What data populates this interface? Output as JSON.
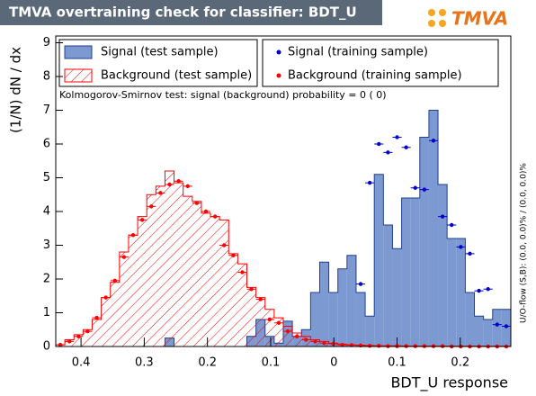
{
  "chart_data": {
    "type": "histogram",
    "title": "TMVA overtraining check for classifier: BDT_U",
    "logo": "TMVA",
    "xlabel": "BDT_U response",
    "ylabel": "(1/N) dN / dx",
    "annotation": "Kolmogorov-Smirnov test: signal (background) probability =     0 (    0)",
    "side_note": "U/O-flow (S,B): (0.0, 0.0)% / (0.0, 0.0)%",
    "xlim": [
      -0.44,
      0.28
    ],
    "ylim": [
      0,
      9.2
    ],
    "xticks": [
      {
        "value": -0.4,
        "label": "0.4"
      },
      {
        "value": -0.3,
        "label": "0.3"
      },
      {
        "value": -0.2,
        "label": "0.2"
      },
      {
        "value": -0.1,
        "label": "0.1"
      },
      0,
      0.1,
      0.2
    ],
    "yticks": [
      0,
      1,
      2,
      3,
      4,
      5,
      6,
      7,
      8,
      9
    ],
    "bins": [
      -0.44,
      -0.4256,
      -0.4112,
      -0.3968,
      -0.3824,
      -0.368,
      -0.3536,
      -0.3392,
      -0.3248,
      -0.3104,
      -0.296,
      -0.2816,
      -0.2672,
      -0.2528,
      -0.2384,
      -0.224,
      -0.2096,
      -0.1952,
      -0.1808,
      -0.1664,
      -0.152,
      -0.1376,
      -0.1232,
      -0.1088,
      -0.0944,
      -0.08,
      -0.0656,
      -0.0512,
      -0.0368,
      -0.0224,
      -0.008,
      0.0064,
      0.0208,
      0.0352,
      0.0496,
      0.064,
      0.0784,
      0.0928,
      0.1072,
      0.1216,
      0.136,
      0.1504,
      0.1648,
      0.1792,
      0.1936,
      0.208,
      0.2224,
      0.2368,
      0.2512,
      0.2656,
      0.28
    ],
    "series": [
      {
        "name": "Signal (test sample)",
        "color": "#7d99d1",
        "style": "filled",
        "values": [
          0,
          0,
          0,
          0,
          0,
          0,
          0,
          0,
          0,
          0,
          0,
          0,
          0.25,
          0,
          0,
          0,
          0,
          0,
          0,
          0,
          0,
          0.3,
          0.8,
          0.3,
          0.1,
          0.75,
          0.3,
          0.5,
          1.6,
          2.5,
          1.6,
          2.3,
          2.7,
          1.6,
          0.9,
          5.1,
          3.6,
          2.9,
          4.4,
          4.4,
          6.2,
          7.0,
          4.8,
          3.2,
          3.2,
          1.6,
          0.9,
          0.8,
          1.1,
          1.1
        ]
      },
      {
        "name": "Background (test sample)",
        "color": "#ff0000",
        "style": "hatched",
        "values": [
          0.05,
          0.2,
          0.35,
          0.5,
          0.8,
          1.45,
          1.9,
          2.8,
          3.3,
          3.85,
          4.5,
          4.75,
          5.2,
          4.85,
          4.45,
          4.3,
          3.95,
          3.85,
          3.75,
          2.75,
          2.45,
          1.75,
          1.45,
          1.1,
          0.85,
          0.6,
          0.4,
          0.3,
          0.2,
          0.15,
          0.1,
          0.07,
          0.05,
          0.04,
          0.03,
          0.02,
          0.02,
          0.02,
          0.01,
          0.01,
          0.01,
          0.01,
          0.01,
          0.01,
          0.01,
          0.01,
          0.01,
          0.01,
          0.01,
          0.01
        ]
      },
      {
        "name": "Signal (training sample)",
        "color": "#0000cc",
        "style": "points",
        "values": [
          null,
          null,
          null,
          null,
          null,
          null,
          null,
          null,
          null,
          null,
          null,
          null,
          null,
          null,
          null,
          null,
          null,
          null,
          null,
          null,
          null,
          null,
          null,
          null,
          null,
          null,
          null,
          null,
          null,
          null,
          null,
          null,
          null,
          1.85,
          4.85,
          6.0,
          5.75,
          6.2,
          5.9,
          4.7,
          4.65,
          6.1,
          3.85,
          3.6,
          2.95,
          2.75,
          1.65,
          1.7,
          0.65,
          0.6
        ]
      },
      {
        "name": "Background (training sample)",
        "color": "#ff0000",
        "style": "points",
        "values": [
          0.05,
          0.15,
          0.3,
          0.45,
          0.85,
          1.45,
          1.95,
          2.65,
          3.3,
          3.75,
          4.15,
          4.55,
          4.8,
          4.9,
          4.75,
          4.25,
          4.0,
          3.85,
          3.0,
          2.7,
          2.2,
          1.7,
          1.4,
          0.8,
          0.7,
          0.45,
          0.3,
          0.2,
          0.15,
          0.1,
          0.08,
          0.05,
          0.04,
          0.03,
          0.02,
          0.02,
          0.01,
          0.01,
          0.01,
          0.01,
          0.01,
          0.01,
          0.01,
          0,
          0,
          0,
          0,
          0,
          0,
          0
        ]
      }
    ]
  }
}
